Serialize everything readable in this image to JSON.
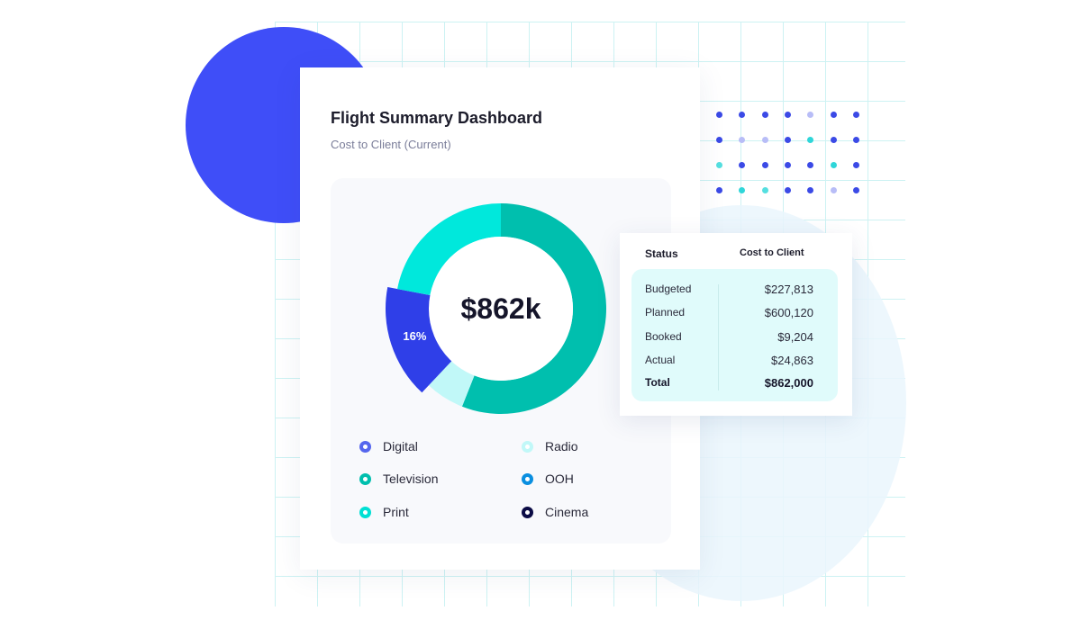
{
  "card": {
    "title": "Flight Summary Dashboard",
    "subtitle": "Cost to Client (Current)"
  },
  "chart_data": {
    "type": "pie",
    "center_label": "$862k",
    "slices": [
      {
        "name": "Television",
        "value": 56,
        "color": "#00bfae",
        "label": ""
      },
      {
        "name": "Radio",
        "value": 6,
        "color": "#c1f8f8",
        "label": ""
      },
      {
        "name": "Digital",
        "value": 16,
        "color": "#2f3fe8",
        "label": "16%"
      },
      {
        "name": "Print",
        "value": 22,
        "color": "#00e8dc",
        "label": ""
      }
    ],
    "legend": [
      {
        "name": "Digital",
        "color": "#5566ee"
      },
      {
        "name": "Radio",
        "color": "#c1f8f8"
      },
      {
        "name": "Television",
        "color": "#00bfae"
      },
      {
        "name": "OOH",
        "color": "#0a8fe0"
      },
      {
        "name": "Print",
        "color": "#00e0d4"
      },
      {
        "name": "Cinema",
        "color": "#0b0b45"
      }
    ]
  },
  "status_table": {
    "headers": [
      "Status",
      "Cost to Client"
    ],
    "rows": [
      {
        "status": "Budgeted",
        "cost": "$227,813"
      },
      {
        "status": "Planned",
        "cost": "$600,120"
      },
      {
        "status": "Booked",
        "cost": "$9,204"
      },
      {
        "status": "Actual",
        "cost": "$24,863"
      }
    ],
    "total": {
      "status": "Total",
      "cost": "$862,000"
    }
  },
  "colors": {
    "accent_blue": "#3f4ef8",
    "teal": "#00bfae",
    "cyan": "#00e8dc",
    "grid": "#cdf2f3"
  }
}
